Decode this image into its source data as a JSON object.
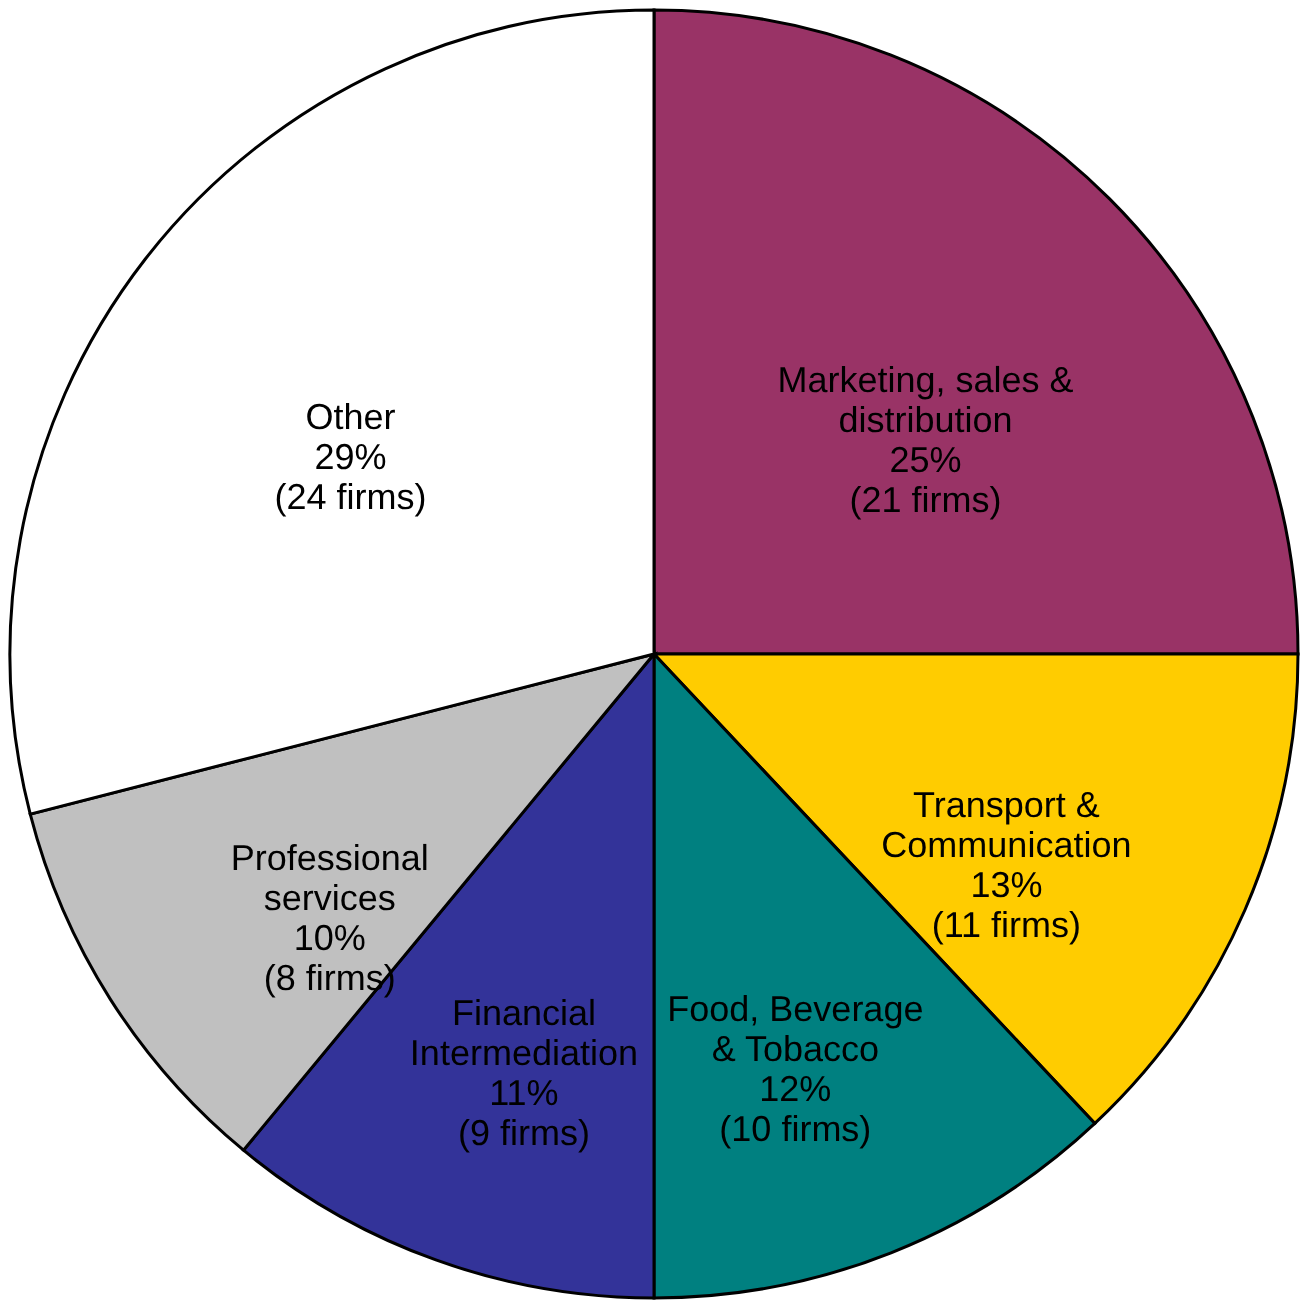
{
  "chart_data": {
    "type": "pie",
    "categories": [
      "Marketing, sales &\ndistribution",
      "Transport &\nCommunication",
      "Food, Beverage\n& Tobacco",
      "Financial\nIntermediation",
      "Professional\nservices",
      "Other"
    ],
    "values": [
      25,
      13,
      12,
      11,
      10,
      29
    ],
    "colors": [
      "#993366",
      "#ffcc00",
      "#008080",
      "#333399",
      "#c0c0c0",
      "#ffffff"
    ],
    "value_labels": [
      "25%\n(21 firms)",
      "13%\n(11 firms)",
      "12%\n(10 firms)",
      "11%\n(9 firms)",
      "10%\n(8 firms)",
      "29%\n(24 firms)"
    ],
    "legend": false
  }
}
